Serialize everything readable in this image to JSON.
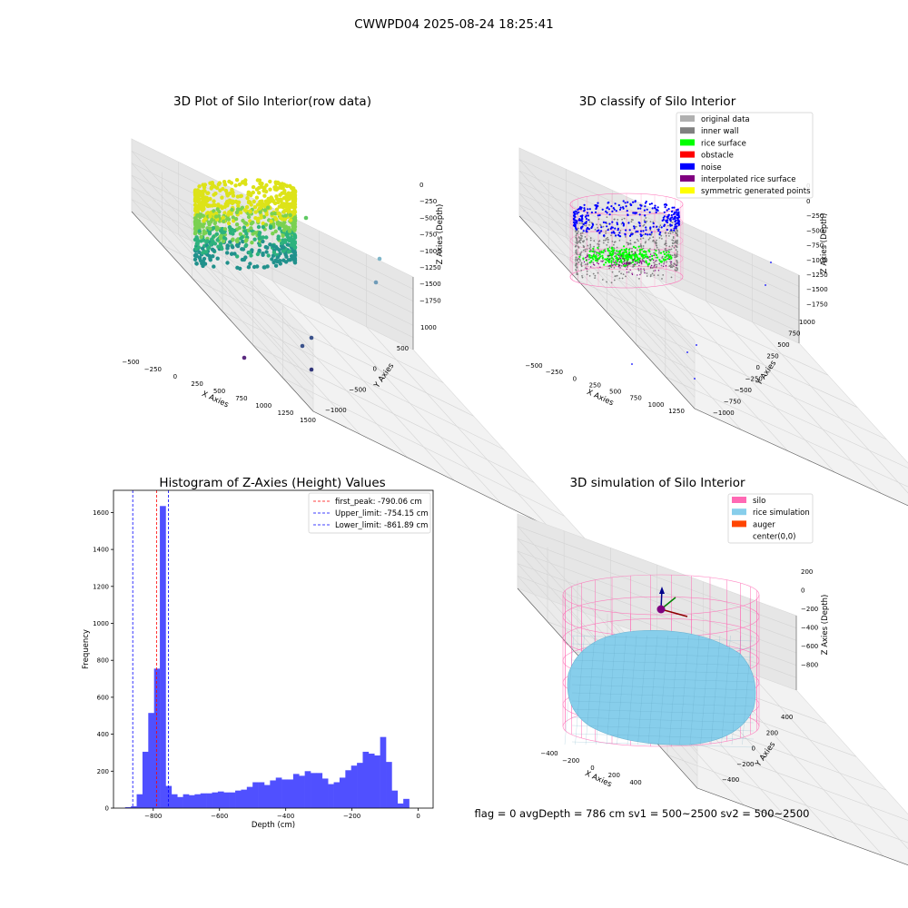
{
  "figure_title": "CWWPD04 2025-08-24 18:25:41",
  "footer": "flag = 0     avgDepth = 786 cm  sv1 = 500~2500  sv2 = 500~2500",
  "colors": {
    "hist_bar": "#5050ff",
    "peak_line": "#ff0000",
    "limit_line": "#0000ff",
    "silo": "#ff69b4",
    "rice": "#87ceeb",
    "auger": "#ff4500",
    "rice_surface": "#00ff00",
    "noise": "#0000ff",
    "inner_wall": "#808080"
  },
  "chart_data": [
    {
      "type": "scatter",
      "subtype": "3d-scatter",
      "title": "3D Plot of Silo Interior(row data)",
      "xlabel": "X Axies",
      "ylabel": "Y Axies",
      "zlabel": "Z Axies (Depth)",
      "x_ticks": [
        "−500",
        "−250",
        "0",
        "250",
        "500",
        "750",
        "1000",
        "1250",
        "1500"
      ],
      "y_ticks": [
        "−1000",
        "−500",
        "0",
        "500",
        "1000"
      ],
      "z_ticks": [
        "0",
        "−250",
        "−500",
        "−750",
        "−1000",
        "−1250",
        "−1500",
        "−1750"
      ],
      "colormap": "viridis"
    },
    {
      "type": "scatter",
      "subtype": "3d-scatter",
      "title": "3D classify of Silo Interior",
      "xlabel": "X Axies",
      "ylabel": "Y Axies",
      "zlabel": "Z Axies (Depth)",
      "x_ticks": [
        "−500",
        "−250",
        "0",
        "250",
        "500",
        "750",
        "1000",
        "1250"
      ],
      "y_ticks": [
        "−1000",
        "−750",
        "−500",
        "−250",
        "0",
        "250",
        "500",
        "750",
        "1000"
      ],
      "z_ticks": [
        "0",
        "−250",
        "−500",
        "−750",
        "−1000",
        "−1250",
        "−1500",
        "−1750"
      ],
      "z_extra_tick": "0",
      "legend": [
        {
          "label": "original data",
          "color": "#b0b0b0"
        },
        {
          "label": "inner wall",
          "color": "#808080"
        },
        {
          "label": "rice surface",
          "color": "#00ff00"
        },
        {
          "label": "obstacle",
          "color": "#ff0000"
        },
        {
          "label": "noise",
          "color": "#0000ff"
        },
        {
          "label": "interpolated rice surface",
          "color": "#800080"
        },
        {
          "label": "symmetric generated points",
          "color": "#ffff00"
        }
      ],
      "legend_position": "top-right"
    },
    {
      "type": "bar",
      "subtype": "histogram",
      "title": "Histogram of Z-Axies (Height) Values",
      "xlabel": "Depth (cm)",
      "ylabel": "Frequency",
      "xlim": [
        -920,
        45
      ],
      "ylim": [
        0,
        1720
      ],
      "x_ticks": [
        -800,
        -600,
        -400,
        -200,
        0
      ],
      "x_tick_labels": [
        "−800",
        "−600",
        "−400",
        "−200",
        "0"
      ],
      "y_ticks": [
        0,
        200,
        400,
        600,
        800,
        1000,
        1200,
        1400,
        1600
      ],
      "bin_width": 17.5,
      "bins_start": -885,
      "values": [
        5,
        10,
        75,
        305,
        515,
        755,
        1635,
        120,
        75,
        60,
        75,
        70,
        75,
        80,
        80,
        85,
        90,
        85,
        85,
        95,
        100,
        115,
        140,
        140,
        125,
        150,
        165,
        155,
        155,
        185,
        175,
        200,
        190,
        190,
        160,
        130,
        140,
        165,
        205,
        230,
        245,
        305,
        295,
        285,
        385,
        250,
        95,
        25,
        50
      ],
      "vlines": [
        {
          "label": "first_peak: -790.06 cm",
          "x": -790.06,
          "color": "#ff0000"
        },
        {
          "label": "Upper_limit: -754.15 cm",
          "x": -754.15,
          "color": "#0000ff"
        },
        {
          "label": "Lower_limit: -861.89 cm",
          "x": -861.89,
          "color": "#0000ff"
        }
      ],
      "legend_position": "top-right"
    },
    {
      "type": "scatter",
      "subtype": "3d-surface",
      "title": "3D simulation of Silo Interior",
      "xlabel": "X Axies",
      "ylabel": "Y Axies",
      "zlabel": "Z Axies (Depth)",
      "x_ticks": [
        "−400",
        "−200",
        "0",
        "200",
        "400"
      ],
      "y_ticks": [
        "−400",
        "−200",
        "0",
        "200",
        "400"
      ],
      "z_ticks": [
        "200",
        "0",
        "−200",
        "−400",
        "−600",
        "−800"
      ],
      "legend": [
        {
          "label": "silo",
          "color": "#ff69b4"
        },
        {
          "label": "rice simulation",
          "color": "#87ceeb"
        },
        {
          "label": "auger",
          "color": "#ff4500"
        },
        {
          "label": "center(0,0)",
          "color": "none"
        }
      ],
      "legend_position": "top-right"
    }
  ]
}
